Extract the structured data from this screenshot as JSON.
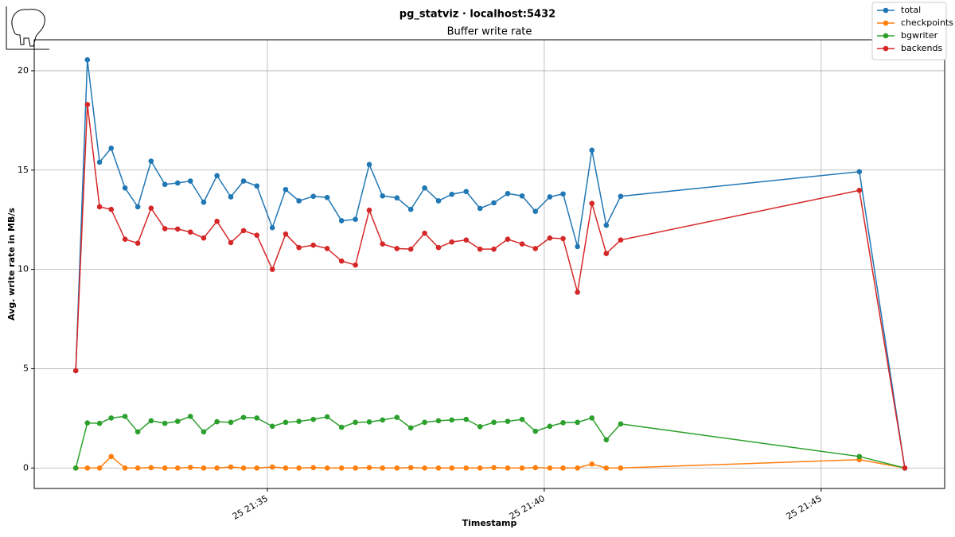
{
  "chart_data": {
    "type": "line",
    "title": "pg_statviz · localhost:5432",
    "subtitle": "Buffer write rate",
    "x_label": "Timestamp",
    "y_label": "Avg. write rate in MB/s",
    "x": [
      31.54,
      31.75,
      31.97,
      32.18,
      32.43,
      32.66,
      32.9,
      33.15,
      33.38,
      33.61,
      33.85,
      34.09,
      34.34,
      34.57,
      34.81,
      35.09,
      35.33,
      35.57,
      35.83,
      36.08,
      36.34,
      36.59,
      36.84,
      37.08,
      37.34,
      37.59,
      37.84,
      38.09,
      38.33,
      38.59,
      38.84,
      39.09,
      39.34,
      39.6,
      39.84,
      40.1,
      40.34,
      40.6,
      40.86,
      41.12,
      41.38,
      45.69,
      46.51
    ],
    "series": [
      {
        "name": "total",
        "color": "#1f77b4",
        "values": [
          4.9,
          20.55,
          15.4,
          16.1,
          14.1,
          13.15,
          15.45,
          14.28,
          14.35,
          14.45,
          13.38,
          14.72,
          13.65,
          14.45,
          14.2,
          12.1,
          14.02,
          13.45,
          13.68,
          13.62,
          12.45,
          12.52,
          15.28,
          13.7,
          13.6,
          13.02,
          14.1,
          13.45,
          13.78,
          13.92,
          13.07,
          13.35,
          13.82,
          13.7,
          12.92,
          13.65,
          13.8,
          11.15,
          16.0,
          12.22,
          13.68,
          14.92,
          0
        ]
      },
      {
        "name": "checkpoints",
        "color": "#ff7f0e",
        "values": [
          0,
          0,
          0,
          0.58,
          0,
          0,
          0.02,
          0,
          0,
          0.03,
          0,
          0,
          0.05,
          0,
          0,
          0.05,
          0,
          0,
          0.02,
          0,
          0,
          0,
          0.02,
          0,
          0,
          0.02,
          0,
          0,
          0,
          0,
          0,
          0.02,
          0,
          0,
          0.02,
          0,
          0,
          0,
          0.2,
          0,
          0,
          0.42,
          0
        ]
      },
      {
        "name": "bgwriter",
        "color": "#2ca02c",
        "values": [
          0,
          2.27,
          2.25,
          2.52,
          2.6,
          1.82,
          2.38,
          2.25,
          2.35,
          2.6,
          1.82,
          2.33,
          2.3,
          2.55,
          2.52,
          2.1,
          2.3,
          2.35,
          2.45,
          2.58,
          2.05,
          2.3,
          2.32,
          2.42,
          2.55,
          2.02,
          2.3,
          2.38,
          2.42,
          2.45,
          2.08,
          2.3,
          2.35,
          2.45,
          1.85,
          2.1,
          2.28,
          2.3,
          2.52,
          1.42,
          2.22,
          0.58,
          0
        ]
      },
      {
        "name": "backends",
        "color": "#d62728",
        "values": [
          4.9,
          18.3,
          13.15,
          13.02,
          11.52,
          11.32,
          13.08,
          12.05,
          12.03,
          11.88,
          11.58,
          12.42,
          11.35,
          11.95,
          11.72,
          10.0,
          11.78,
          11.1,
          11.22,
          11.05,
          10.42,
          10.22,
          12.98,
          11.28,
          11.05,
          11.02,
          11.82,
          11.1,
          11.38,
          11.48,
          11.02,
          11.02,
          11.52,
          11.28,
          11.05,
          11.58,
          11.55,
          8.85,
          13.32,
          10.8,
          11.48,
          13.98,
          0
        ]
      }
    ],
    "xlim": [
      30.79,
      47.23
    ],
    "xticks": [
      {
        "value": 35,
        "label": "25 21:35"
      },
      {
        "value": 40,
        "label": "25 21:40"
      },
      {
        "value": 45,
        "label": "25 21:45"
      }
    ],
    "ylim": [
      -1.03,
      21.56
    ],
    "yticks": [
      0,
      5,
      10,
      15,
      20
    ],
    "grid": true,
    "legend": "upper right"
  }
}
